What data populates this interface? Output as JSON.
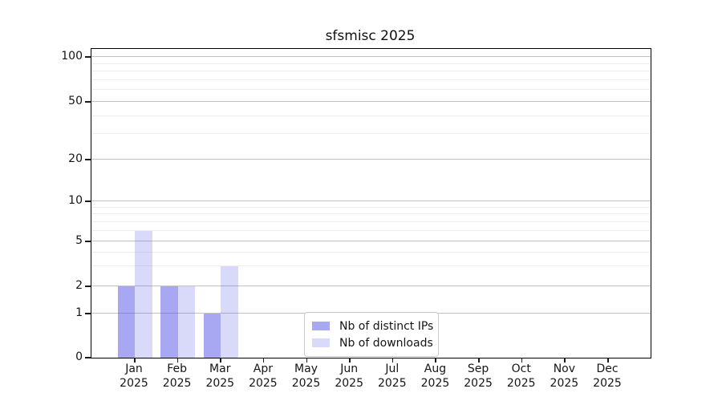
{
  "chart_data": {
    "type": "bar",
    "title": "sfsmisc 2025",
    "categories": [
      "Jan",
      "Feb",
      "Mar",
      "Apr",
      "May",
      "Jun",
      "Jul",
      "Aug",
      "Sep",
      "Oct",
      "Nov",
      "Dec"
    ],
    "category_year": "2025",
    "series": [
      {
        "name": "Nb of distinct IPs",
        "color": "rgba(80,80,230,0.50)",
        "swatch_color": "#a9a9f3",
        "values": [
          2,
          2,
          1,
          0,
          0,
          0,
          0,
          0,
          0,
          0,
          0,
          0
        ]
      },
      {
        "name": "Nb of downloads",
        "color": "rgba(80,80,230,0.22)",
        "swatch_color": "#d9d9fa",
        "values": [
          6,
          2,
          3,
          0,
          0,
          0,
          0,
          0,
          0,
          0,
          0,
          0
        ]
      }
    ],
    "y_axis": {
      "scale": "log-like",
      "major_ticks": [
        0,
        1,
        2,
        5,
        10,
        20,
        50,
        100
      ],
      "major_tick_labels": [
        "0",
        "1",
        "2",
        "5",
        "10",
        "20",
        "50",
        "100"
      ],
      "minor_gridlines": [
        3,
        4,
        6,
        7,
        8,
        9,
        30,
        40,
        60,
        70,
        80,
        90
      ],
      "range": [
        0,
        100
      ]
    },
    "x_axis": {
      "tick_labels_line1": [
        "Jan",
        "Feb",
        "Mar",
        "Apr",
        "May",
        "Jun",
        "Jul",
        "Aug",
        "Sep",
        "Oct",
        "Nov",
        "Dec"
      ],
      "tick_labels_line2": [
        "2025",
        "2025",
        "2025",
        "2025",
        "2025",
        "2025",
        "2025",
        "2025",
        "2025",
        "2025",
        "2025",
        "2025"
      ]
    },
    "legend": {
      "position": "bottom-center",
      "entries": [
        "Nb of distinct IPs",
        "Nb of downloads"
      ]
    },
    "grid": "horizontal major and minor gridlines"
  }
}
